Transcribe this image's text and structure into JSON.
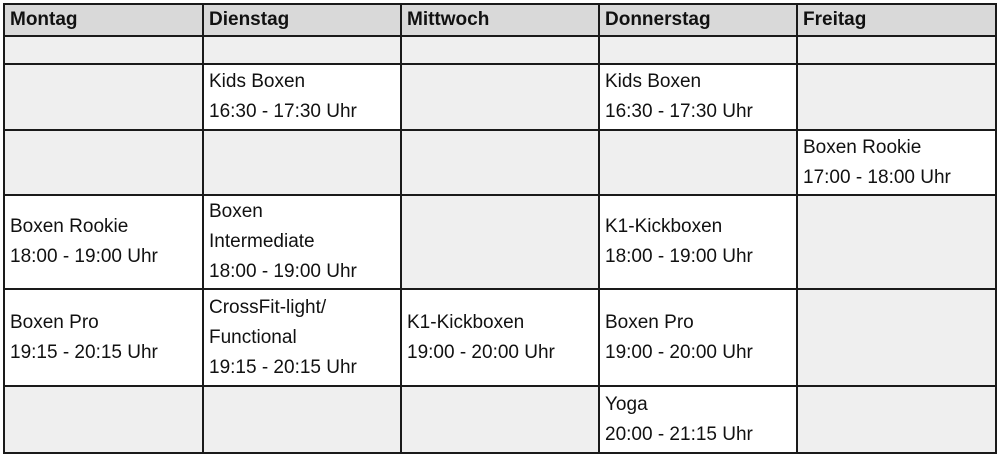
{
  "colors": {
    "header_bg": "#d9d9d9",
    "empty_cell_bg": "#efefef",
    "filled_cell_bg": "#ffffff",
    "border": "#1a1a1a"
  },
  "schedule": {
    "days": [
      "Montag",
      "Dienstag",
      "Mittwoch",
      "Donnerstag",
      "Freitag"
    ],
    "rows": [
      [
        [],
        [],
        [],
        [],
        []
      ],
      [
        [],
        [
          "Kids Boxen",
          "16:30 - 17:30 Uhr"
        ],
        [],
        [
          "Kids Boxen",
          "16:30 - 17:30 Uhr"
        ],
        []
      ],
      [
        [],
        [],
        [],
        [],
        [
          "Boxen Rookie",
          "17:00 - 18:00 Uhr"
        ]
      ],
      [
        [
          "Boxen Rookie",
          "18:00 - 19:00 Uhr"
        ],
        [
          "Boxen",
          "Intermediate",
          "18:00 - 19:00 Uhr"
        ],
        [],
        [
          "K1-Kickboxen",
          "18:00 - 19:00 Uhr"
        ],
        []
      ],
      [
        [
          "Boxen Pro",
          "19:15 - 20:15 Uhr"
        ],
        [
          "CrossFit-light/",
          "Functional",
          "19:15 - 20:15 Uhr"
        ],
        [
          "K1-Kickboxen",
          "19:00 - 20:00 Uhr"
        ],
        [
          "Boxen Pro",
          "19:00 - 20:00 Uhr"
        ],
        []
      ],
      [
        [],
        [],
        [],
        [
          "Yoga",
          "20:00 - 21:15 Uhr"
        ],
        []
      ]
    ]
  }
}
